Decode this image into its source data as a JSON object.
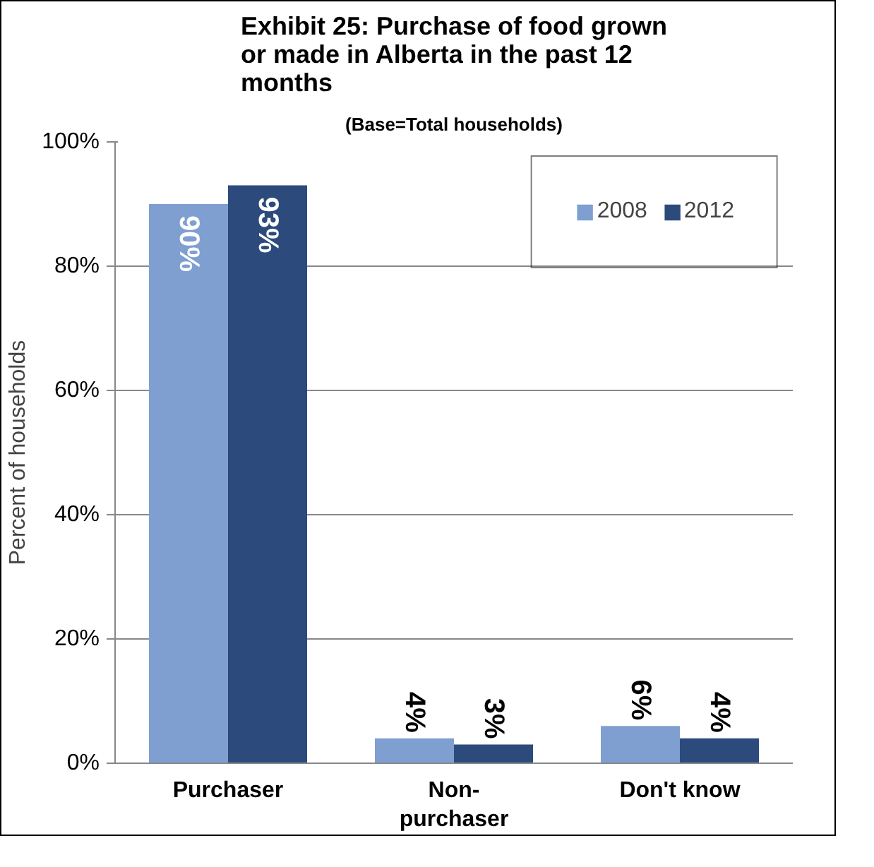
{
  "chart_data": {
    "type": "bar",
    "title": "Exhibit 25: Purchase of food grown or made in Alberta in the past 12 months",
    "subtitle": "(Base=Total households)",
    "ylabel": "Percent of households",
    "categories": [
      "Purchaser",
      "Non-purchaser",
      "Don't know"
    ],
    "series": [
      {
        "name": "2008",
        "color": "#7f9fd1",
        "values": [
          90,
          4,
          6
        ],
        "value_labels": [
          "90%",
          "4%",
          "6%"
        ]
      },
      {
        "name": "2012",
        "color": "#2c4b7c",
        "values": [
          93,
          3,
          4
        ],
        "value_labels": [
          "93%",
          "3%",
          "4%"
        ]
      }
    ],
    "ylim": [
      0,
      100
    ],
    "yticks": [
      {
        "value": 0,
        "label": "0%"
      },
      {
        "value": 20,
        "label": "20%"
      },
      {
        "value": 40,
        "label": "40%"
      },
      {
        "value": 60,
        "label": "60%"
      },
      {
        "value": 80,
        "label": "80%"
      },
      {
        "value": 100,
        "label": "100%"
      }
    ],
    "grid": "y",
    "legend": "top right"
  }
}
